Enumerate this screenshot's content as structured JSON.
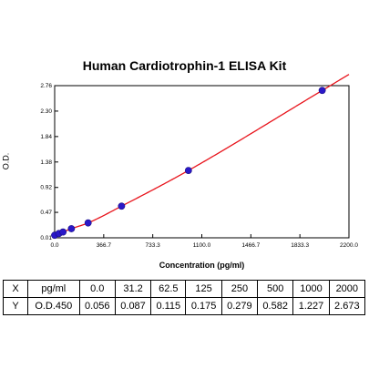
{
  "chart_data": {
    "type": "scatter",
    "title": "Human Cardiotrophin-1 ELISA Kit",
    "xlabel": "Concentration (pg/ml)",
    "ylabel": "O.D.",
    "xlim": [
      0,
      2200
    ],
    "ylim": [
      0.01,
      2.76
    ],
    "x_ticks": [
      "0.0",
      "366.7",
      "733.3",
      "1100.0",
      "1466.7",
      "1833.3",
      "2200.0"
    ],
    "y_ticks": [
      "0.01",
      "0.47",
      "0.92",
      "1.38",
      "1.84",
      "2.30",
      "2.76"
    ],
    "grid": false,
    "curve_color": "#e8141c",
    "marker_color": "#2a18c8",
    "series": [
      {
        "x": [
          0,
          31.2,
          62.5,
          125,
          250,
          500,
          1000,
          2000
        ],
        "y": [
          0.056,
          0.087,
          0.115,
          0.175,
          0.279,
          0.582,
          1.227,
          2.673
        ]
      }
    ]
  },
  "table": {
    "rows": [
      [
        "X",
        "pg/ml",
        "0.0",
        "31.2",
        "62.5",
        "125",
        "250",
        "500",
        "1000",
        "2000"
      ],
      [
        "Y",
        "O.D.450",
        "0.056",
        "0.087",
        "0.115",
        "0.175",
        "0.279",
        "0.582",
        "1.227",
        "2.673"
      ]
    ]
  }
}
